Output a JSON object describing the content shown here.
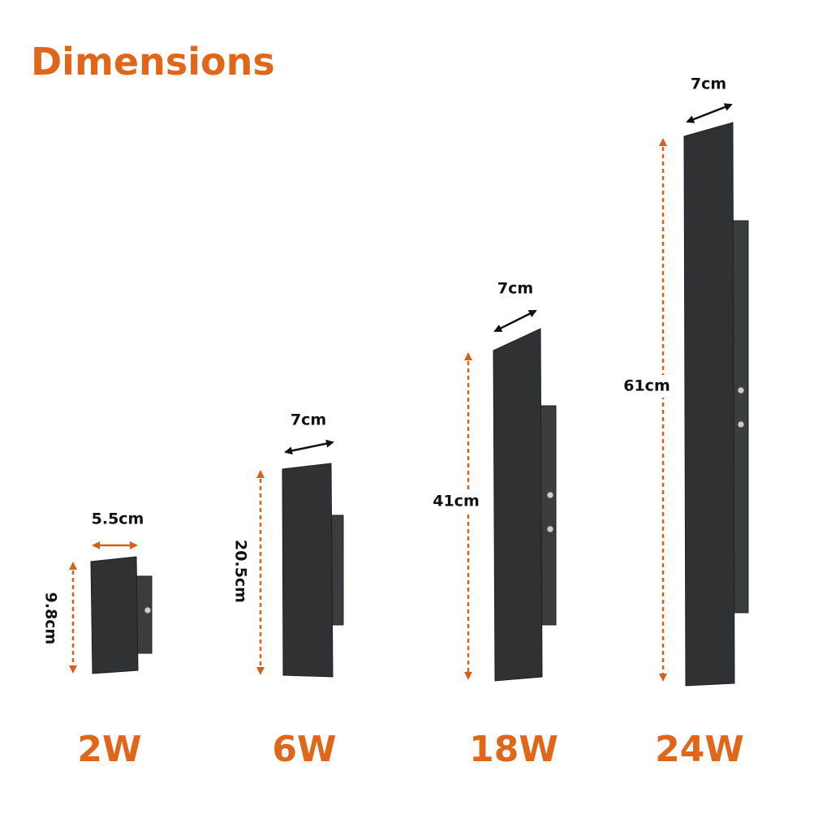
{
  "title": "Dimensions",
  "products": [
    {
      "width": "5.5cm",
      "height": "9.8cm",
      "power": "2W"
    },
    {
      "width": "7cm",
      "height": "20.5cm",
      "power": "6W"
    },
    {
      "width": "7cm",
      "height": "41cm",
      "power": "18W"
    },
    {
      "width": "7cm",
      "height": "61cm",
      "power": "24W"
    }
  ]
}
